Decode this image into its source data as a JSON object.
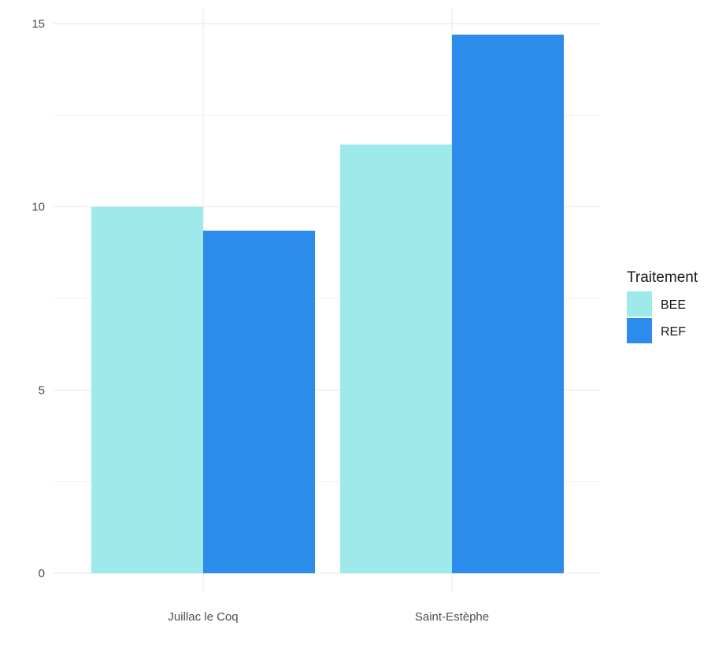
{
  "chart_data": {
    "type": "bar",
    "title": "",
    "xlabel": "",
    "ylabel": "",
    "categories": [
      "Juillac le Coq",
      "Saint-Estèphe"
    ],
    "series": [
      {
        "name": "BEE",
        "values": [
          10.0,
          11.7
        ],
        "color": "#9eeaea"
      },
      {
        "name": "REF",
        "values": [
          9.35,
          14.7
        ],
        "color": "#2b8ceb"
      }
    ],
    "ylim": [
      0,
      15
    ],
    "yticks": [
      0,
      5,
      10,
      15
    ],
    "grid": true,
    "legend": {
      "title": "Traitement",
      "position": "right",
      "items": [
        "BEE",
        "REF"
      ]
    }
  }
}
